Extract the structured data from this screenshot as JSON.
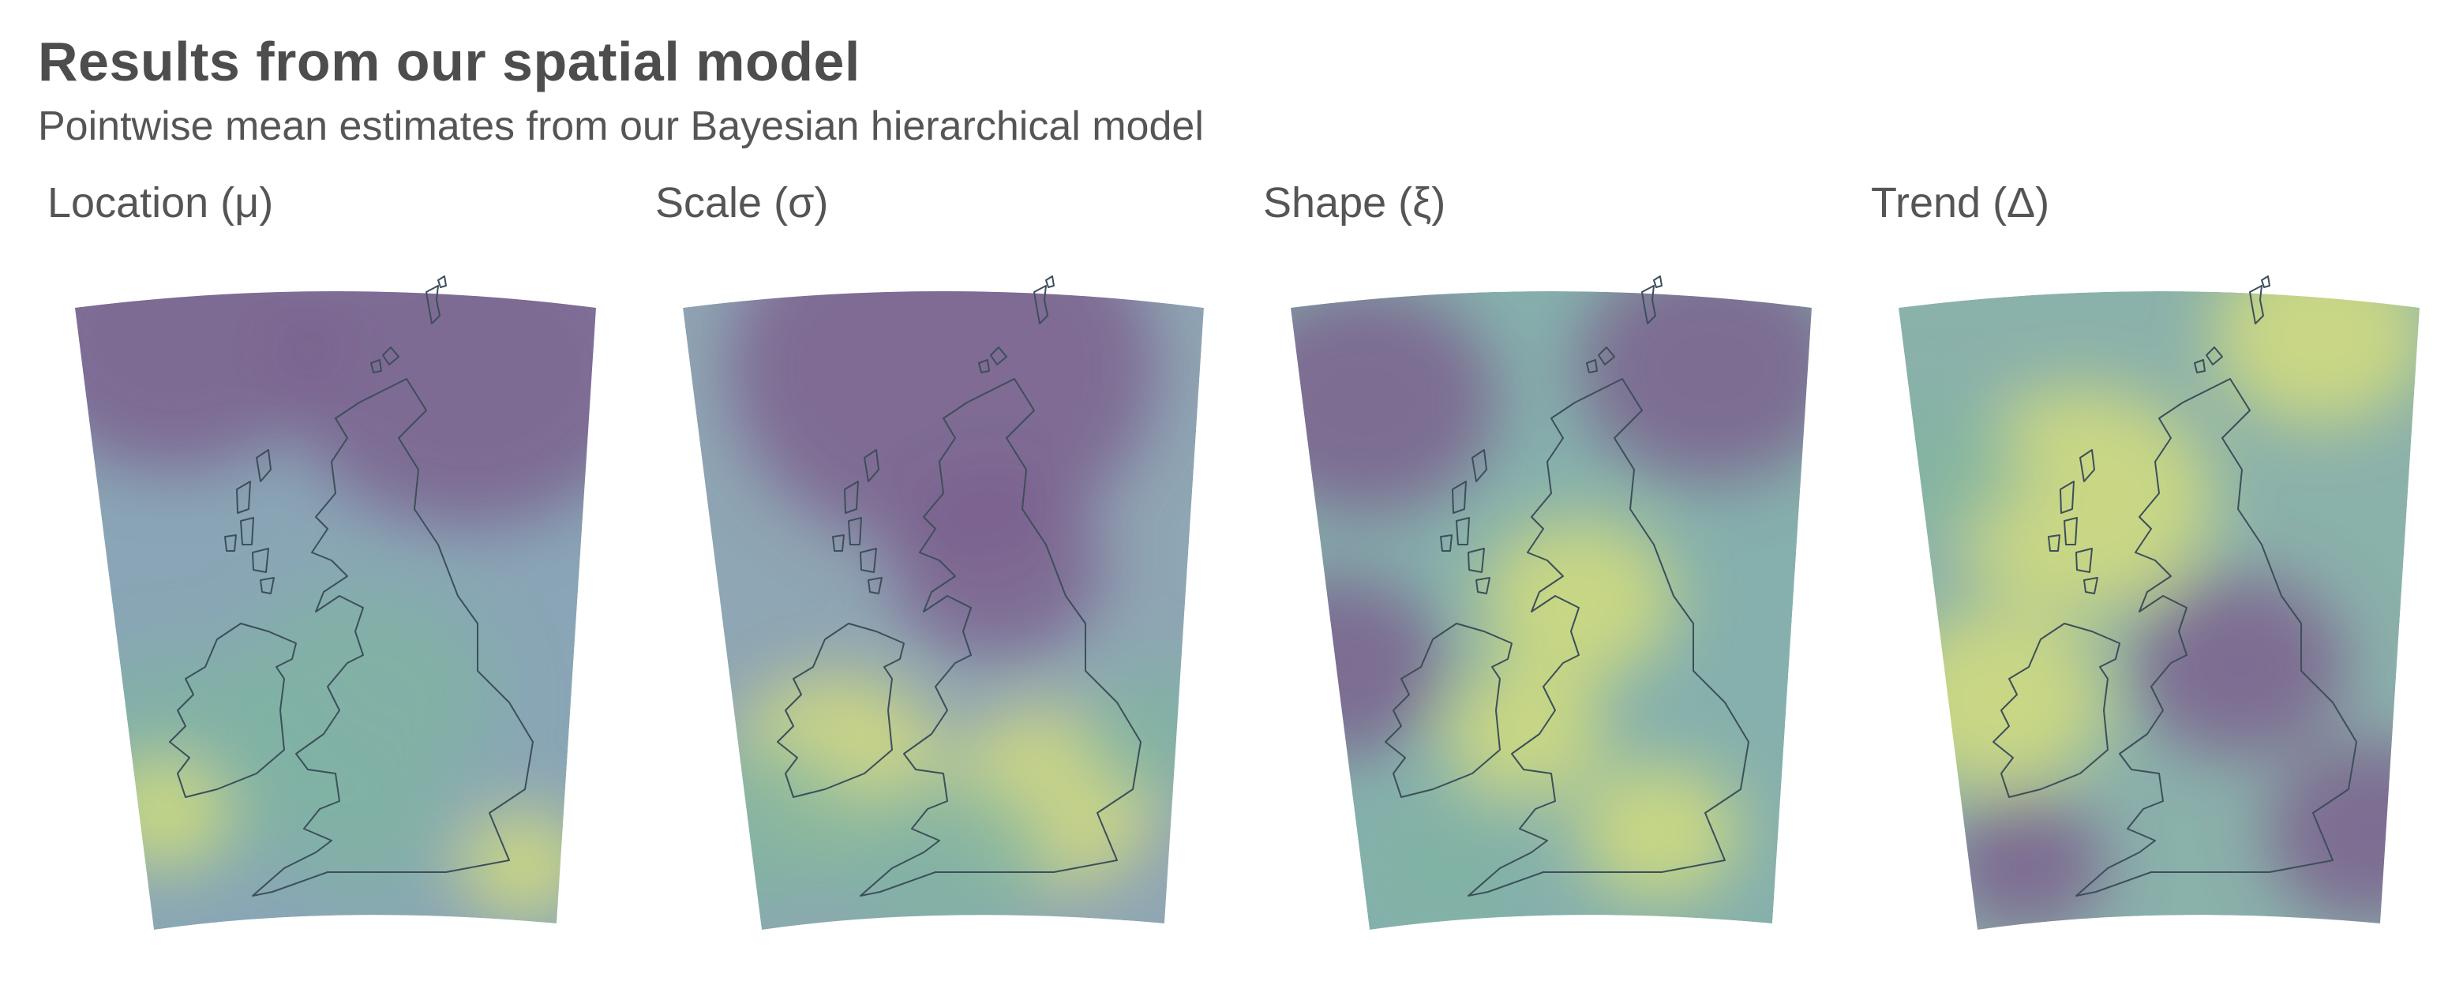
{
  "header": {
    "title": "Results from our spatial model",
    "subtitle": "Pointwise mean estimates from our Bayesian hierarchical model"
  },
  "palette": {
    "low": "#7b5c8c",
    "mid": "#7fb3a3",
    "high": "#d8e07a",
    "coastline": "#3c4f5a"
  },
  "panels": [
    {
      "id": "location",
      "label": "Location (μ)",
      "field": {
        "base": "#8aa6b6",
        "blobs": [
          {
            "u": 0.75,
            "v": 0.15,
            "r": 0.35,
            "level": "low"
          },
          {
            "u": 0.2,
            "v": 0.1,
            "r": 0.3,
            "level": "low"
          },
          {
            "u": 0.22,
            "v": 0.75,
            "r": 0.25,
            "level": "mid"
          },
          {
            "u": 0.18,
            "v": 0.82,
            "r": 0.12,
            "level": "high"
          },
          {
            "u": 0.55,
            "v": 0.65,
            "r": 0.25,
            "level": "mid"
          },
          {
            "u": 0.85,
            "v": 0.9,
            "r": 0.12,
            "level": "high"
          },
          {
            "u": 0.55,
            "v": 0.85,
            "r": 0.15,
            "level": "mid"
          }
        ]
      }
    },
    {
      "id": "scale",
      "label": "Scale (σ)",
      "field": {
        "base": "#8fa6b4",
        "blobs": [
          {
            "u": 0.5,
            "v": 0.15,
            "r": 0.4,
            "level": "low"
          },
          {
            "u": 0.6,
            "v": 0.45,
            "r": 0.2,
            "level": "low"
          },
          {
            "u": 0.3,
            "v": 0.75,
            "r": 0.2,
            "level": "high"
          },
          {
            "u": 0.7,
            "v": 0.8,
            "r": 0.2,
            "level": "high"
          },
          {
            "u": 0.15,
            "v": 0.85,
            "r": 0.2,
            "level": "mid"
          },
          {
            "u": 0.5,
            "v": 0.9,
            "r": 0.2,
            "level": "mid"
          },
          {
            "u": 0.9,
            "v": 0.7,
            "r": 0.15,
            "level": "mid"
          }
        ]
      }
    },
    {
      "id": "shape",
      "label": "Shape (ξ)",
      "field": {
        "base": "#86b0ad",
        "blobs": [
          {
            "u": 0.15,
            "v": 0.2,
            "r": 0.25,
            "level": "low"
          },
          {
            "u": 0.8,
            "v": 0.15,
            "r": 0.25,
            "level": "low"
          },
          {
            "u": 0.55,
            "v": 0.5,
            "r": 0.18,
            "level": "high"
          },
          {
            "u": 0.45,
            "v": 0.7,
            "r": 0.15,
            "level": "high"
          },
          {
            "u": 0.7,
            "v": 0.85,
            "r": 0.15,
            "level": "high"
          },
          {
            "u": 0.1,
            "v": 0.6,
            "r": 0.2,
            "level": "low"
          },
          {
            "u": 0.3,
            "v": 0.9,
            "r": 0.15,
            "level": "mid"
          }
        ]
      }
    },
    {
      "id": "trend",
      "label": "Trend (Δ)",
      "field": {
        "base": "#8bb1ab",
        "blobs": [
          {
            "u": 0.35,
            "v": 0.35,
            "r": 0.25,
            "level": "high"
          },
          {
            "u": 0.2,
            "v": 0.65,
            "r": 0.2,
            "level": "high"
          },
          {
            "u": 0.8,
            "v": 0.1,
            "r": 0.2,
            "level": "high"
          },
          {
            "u": 0.65,
            "v": 0.6,
            "r": 0.2,
            "level": "low"
          },
          {
            "u": 0.9,
            "v": 0.85,
            "r": 0.2,
            "level": "low"
          },
          {
            "u": 0.25,
            "v": 0.9,
            "r": 0.15,
            "level": "low"
          },
          {
            "u": 0.1,
            "v": 0.3,
            "r": 0.15,
            "level": "mid"
          }
        ]
      }
    }
  ]
}
